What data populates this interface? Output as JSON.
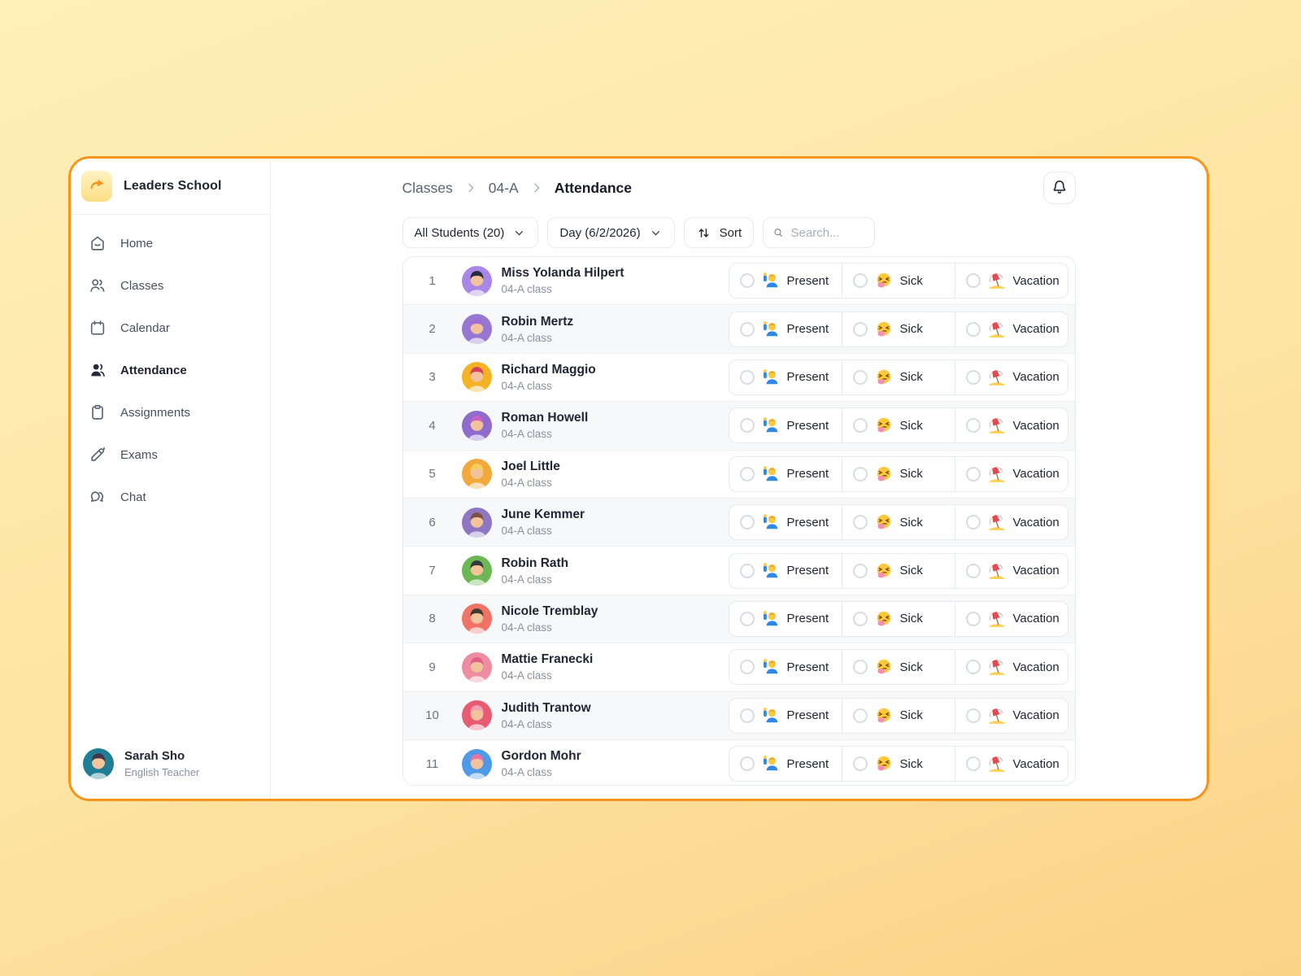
{
  "app": {
    "brand": "Leaders School",
    "logo_icon": "arrow-logo-icon",
    "accent_color": "#F7941E"
  },
  "sidebar": {
    "items": [
      {
        "label": "Home",
        "icon": "home-icon",
        "active": false
      },
      {
        "label": "Classes",
        "icon": "classes-icon",
        "active": false
      },
      {
        "label": "Calendar",
        "icon": "calendar-icon",
        "active": false
      },
      {
        "label": "Attendance",
        "icon": "attendance-icon",
        "active": true
      },
      {
        "label": "Assignments",
        "icon": "assignments-icon",
        "active": false
      },
      {
        "label": "Exams",
        "icon": "exams-icon",
        "active": false
      },
      {
        "label": "Chat",
        "icon": "chat-icon",
        "active": false
      }
    ],
    "profile": {
      "name": "Sarah Sho",
      "role": "English Teacher",
      "avatar": {
        "bg": "#1F7E93",
        "hair": "#41364A"
      }
    }
  },
  "header": {
    "breadcrumb": [
      "Classes",
      "04-A",
      "Attendance"
    ],
    "separator_icon": "chevron-right-icon",
    "bell_icon": "bell-icon"
  },
  "filters": {
    "students_dropdown": "All Students  (20)",
    "students_dropdown_icon": "chevron-down-icon",
    "day_dropdown": "Day (6/2/2026)",
    "day_dropdown_icon": "chevron-down-icon",
    "sort_label": "Sort",
    "sort_icon": "sort-arrows-icon",
    "search_placeholder": "Search...",
    "search_icon": "search-icon"
  },
  "table": {
    "class_label": "04-A class",
    "options": [
      {
        "label": "Present",
        "icon": "raising-hand-emoji"
      },
      {
        "label": "Sick",
        "icon": "sneezing-face-emoji"
      },
      {
        "label": "Vacation",
        "icon": "beach-umbrella-emoji"
      }
    ],
    "rows": [
      {
        "number": "1",
        "name": "Miss Yolanda Hilpert",
        "avatar": {
          "bg": "#A887E8",
          "hair": "#262B3E"
        }
      },
      {
        "number": "2",
        "name": "Robin Mertz",
        "avatar": {
          "bg": "#9678D2",
          "hair": "#A06CD5"
        }
      },
      {
        "number": "3",
        "name": "Richard Maggio",
        "avatar": {
          "bg": "#F4B324",
          "hair": "#D8415A"
        }
      },
      {
        "number": "4",
        "name": "Roman Howell",
        "avatar": {
          "bg": "#8F6CCB",
          "hair": "#C95FC2"
        }
      },
      {
        "number": "5",
        "name": "Joel Little",
        "avatar": {
          "bg": "#F2A93B",
          "hair": "#F7CE57"
        }
      },
      {
        "number": "6",
        "name": "June Kemmer",
        "avatar": {
          "bg": "#8F76C2",
          "hair": "#7A5244"
        }
      },
      {
        "number": "7",
        "name": "Robin Rath",
        "avatar": {
          "bg": "#6CB653",
          "hair": "#31393A"
        }
      },
      {
        "number": "8",
        "name": "Nicole Tremblay",
        "avatar": {
          "bg": "#EF7366",
          "hair": "#463832"
        }
      },
      {
        "number": "9",
        "name": "Mattie Franecki",
        "avatar": {
          "bg": "#EE8CA2",
          "hair": "#E25F87"
        }
      },
      {
        "number": "10",
        "name": "Judith Trantow",
        "avatar": {
          "bg": "#E75C72",
          "hair": "#F2A0B5"
        }
      },
      {
        "number": "11",
        "name": "Gordon Mohr",
        "avatar": {
          "bg": "#4E9AE8",
          "hair": "#E873A2"
        }
      }
    ]
  }
}
